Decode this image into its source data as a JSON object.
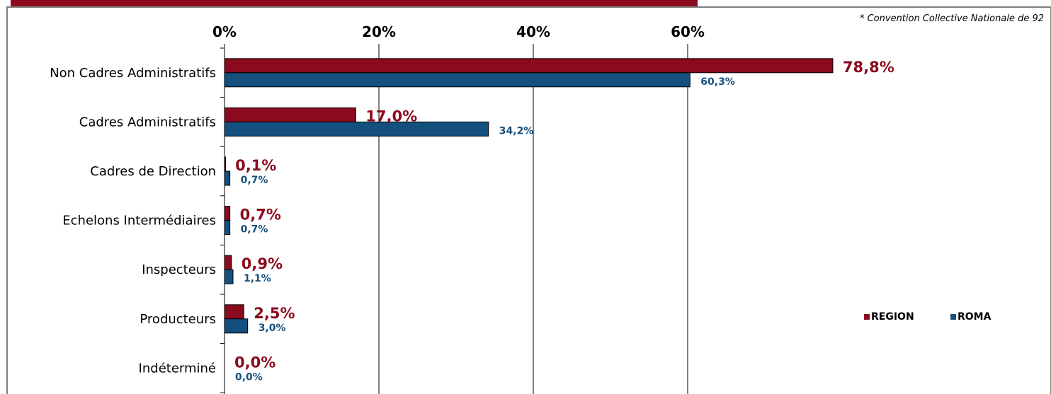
{
  "header": {
    "title": "...",
    "note": "* Convention Collective Nationale de 92"
  },
  "colors": {
    "region": "#8b0a1d",
    "roma": "#14507e",
    "grid": "#000000"
  },
  "chart_data": {
    "type": "bar",
    "orientation": "horizontal",
    "categories": [
      "Non Cadres Administratifs",
      "Cadres Administratifs",
      "Cadres de Direction",
      "Echelons Intermédiaires",
      "Inspecteurs",
      "Producteurs",
      "Indéterminé"
    ],
    "series": [
      {
        "name": "REGION",
        "values": [
          78.8,
          17.0,
          0.1,
          0.7,
          0.9,
          2.5,
          0.0
        ],
        "labels": [
          "78,8%",
          "17,0%",
          "0,1%",
          "0,7%",
          "0,9%",
          "2,5%",
          "0,0%"
        ]
      },
      {
        "name": "ROMA",
        "values": [
          60.3,
          34.2,
          0.7,
          0.7,
          1.1,
          3.0,
          0.0
        ],
        "labels": [
          "60,3%",
          "34,2%",
          "0,7%",
          "0,7%",
          "1,1%",
          "3,0%",
          "0,0%"
        ]
      }
    ],
    "x_ticks": [
      0,
      20,
      40,
      60
    ],
    "x_tick_labels": [
      "0%",
      "20%",
      "40%",
      "60%"
    ],
    "xlim": [
      0,
      80
    ],
    "grid": true,
    "legend_position": "right"
  }
}
